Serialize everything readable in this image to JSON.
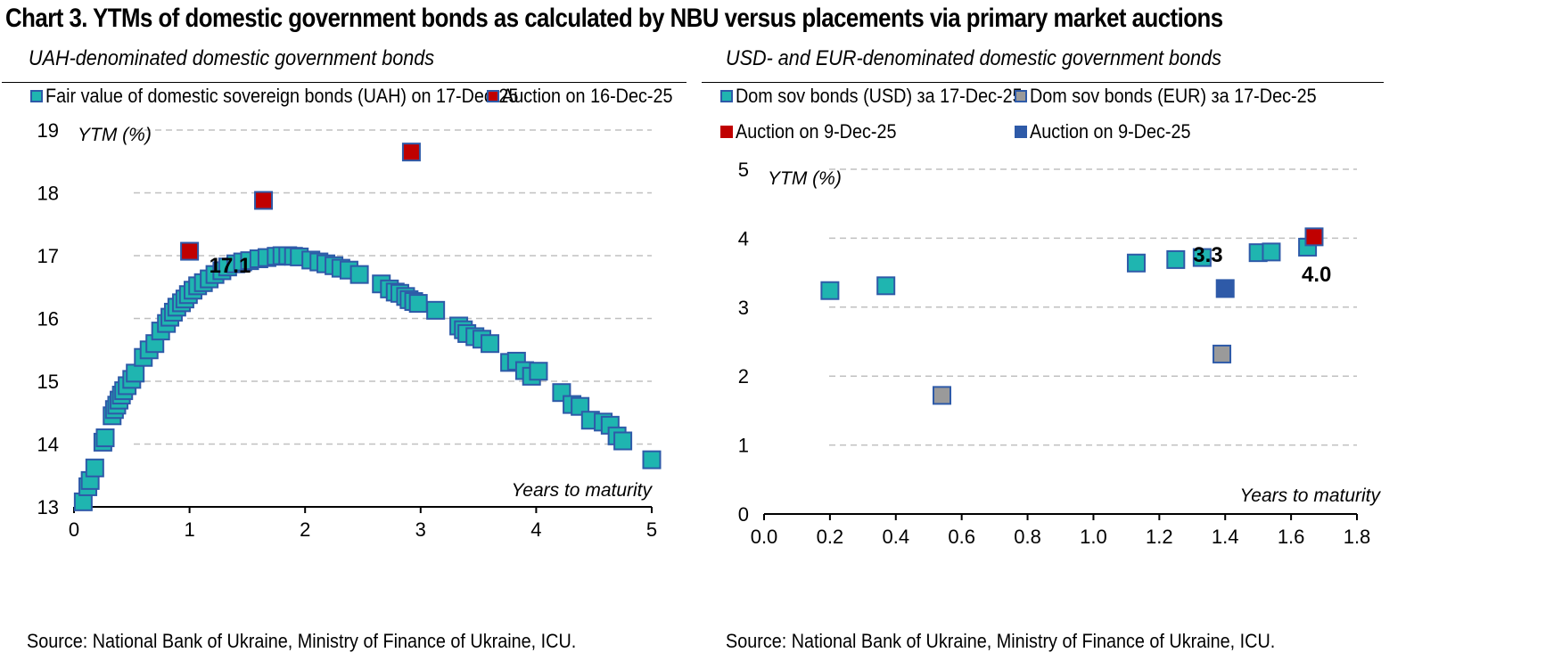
{
  "title": "Chart 3. YTMs of domestic government bonds as calculated by NBU versus placements via primary market auctions",
  "colors": {
    "teal": "#1fb5b0",
    "teal_edge": "#2e5aa8",
    "red": "#c00000",
    "blue": "#2e5aa8",
    "gray": "#9a9a9a",
    "grid": "#c0c0c0"
  },
  "chart_data": [
    {
      "type": "scatter",
      "title": "UAH-denominated domestic government bonds",
      "ylabel": "YTM (%)",
      "xlabel": "Years to maturity",
      "xlim": [
        0,
        5
      ],
      "ylim": [
        13,
        19
      ],
      "x_ticks": [
        "0",
        "1",
        "2",
        "3",
        "4",
        "5"
      ],
      "y_ticks": [
        "13",
        "14",
        "15",
        "16",
        "17",
        "18",
        "19"
      ],
      "grid": "horizontal dashed",
      "source": "Source: National Bank of Ukraine, Ministry of Finance of Ukraine, ICU.",
      "series": [
        {
          "name": "Fair value of domestic sovereign bonds (UAH) on 17-Dec-25",
          "color": "teal",
          "points": [
            [
              0.08,
              13.08
            ],
            [
              0.12,
              13.32
            ],
            [
              0.14,
              13.42
            ],
            [
              0.18,
              13.62
            ],
            [
              0.25,
              14.03
            ],
            [
              0.27,
              14.1
            ],
            [
              0.33,
              14.45
            ],
            [
              0.35,
              14.55
            ],
            [
              0.37,
              14.62
            ],
            [
              0.39,
              14.7
            ],
            [
              0.41,
              14.78
            ],
            [
              0.43,
              14.85
            ],
            [
              0.46,
              14.93
            ],
            [
              0.5,
              15.03
            ],
            [
              0.53,
              15.13
            ],
            [
              0.6,
              15.38
            ],
            [
              0.65,
              15.5
            ],
            [
              0.7,
              15.6
            ],
            [
              0.75,
              15.8
            ],
            [
              0.8,
              15.92
            ],
            [
              0.83,
              16.02
            ],
            [
              0.86,
              16.1
            ],
            [
              0.89,
              16.18
            ],
            [
              0.93,
              16.25
            ],
            [
              0.96,
              16.31
            ],
            [
              0.99,
              16.38
            ],
            [
              1.03,
              16.45
            ],
            [
              1.07,
              16.52
            ],
            [
              1.12,
              16.57
            ],
            [
              1.17,
              16.63
            ],
            [
              1.22,
              16.7
            ],
            [
              1.28,
              16.76
            ],
            [
              1.33,
              16.82
            ],
            [
              1.4,
              16.87
            ],
            [
              1.46,
              16.9
            ],
            [
              1.52,
              16.92
            ],
            [
              1.6,
              16.95
            ],
            [
              1.67,
              16.97
            ],
            [
              1.75,
              16.99
            ],
            [
              1.8,
              17.0
            ],
            [
              1.85,
              17.0
            ],
            [
              1.9,
              16.99
            ],
            [
              1.95,
              16.98
            ],
            [
              2.05,
              16.93
            ],
            [
              2.12,
              16.9
            ],
            [
              2.18,
              16.87
            ],
            [
              2.25,
              16.84
            ],
            [
              2.31,
              16.8
            ],
            [
              2.38,
              16.77
            ],
            [
              2.47,
              16.7
            ],
            [
              2.66,
              16.55
            ],
            [
              2.73,
              16.47
            ],
            [
              2.78,
              16.42
            ],
            [
              2.82,
              16.4
            ],
            [
              2.87,
              16.35
            ],
            [
              2.9,
              16.3
            ],
            [
              2.94,
              16.27
            ],
            [
              2.98,
              16.24
            ],
            [
              3.13,
              16.13
            ],
            [
              3.33,
              15.88
            ],
            [
              3.37,
              15.82
            ],
            [
              3.4,
              15.76
            ],
            [
              3.47,
              15.71
            ],
            [
              3.53,
              15.67
            ],
            [
              3.6,
              15.6
            ],
            [
              3.77,
              15.3
            ],
            [
              3.83,
              15.32
            ],
            [
              3.9,
              15.17
            ],
            [
              3.96,
              15.08
            ],
            [
              4.02,
              15.16
            ],
            [
              4.22,
              14.82
            ],
            [
              4.31,
              14.63
            ],
            [
              4.38,
              14.6
            ],
            [
              4.47,
              14.38
            ],
            [
              4.58,
              14.35
            ],
            [
              4.64,
              14.3
            ],
            [
              4.7,
              14.13
            ],
            [
              4.75,
              14.05
            ],
            [
              5.0,
              13.75
            ]
          ]
        },
        {
          "name": "Auction on 16-Dec-25",
          "color": "red",
          "points": [
            [
              1.0,
              17.07
            ],
            [
              1.64,
              17.88
            ],
            [
              2.92,
              18.65
            ]
          ]
        }
      ],
      "annotations": [
        {
          "text": "17.1",
          "x": 1.0,
          "y": 17.07
        }
      ]
    },
    {
      "type": "scatter",
      "title": "USD- and EUR-denominated domestic government bonds",
      "ylabel": "YTM (%)",
      "xlabel": "Years to maturity",
      "xlim": [
        0,
        1.8
      ],
      "ylim": [
        0,
        5
      ],
      "x_ticks": [
        "0.0",
        "0.2",
        "0.4",
        "0.6",
        "0.8",
        "1.0",
        "1.2",
        "1.4",
        "1.6",
        "1.8"
      ],
      "y_ticks": [
        "0",
        "1",
        "2",
        "3",
        "4",
        "5"
      ],
      "grid": "horizontal dashed",
      "source": "Source: National Bank of Ukraine, Ministry of Finance of Ukraine, ICU.",
      "series": [
        {
          "name": "Dom sov bonds (USD) за 17-Dec-25",
          "color": "teal",
          "points": [
            [
              0.2,
              3.24
            ],
            [
              0.37,
              3.31
            ],
            [
              1.13,
              3.64
            ],
            [
              1.25,
              3.69
            ],
            [
              1.33,
              3.72
            ],
            [
              1.5,
              3.79
            ],
            [
              1.54,
              3.8
            ],
            [
              1.65,
              3.87
            ]
          ]
        },
        {
          "name": "Dom sov bonds (EUR) за 17-Dec-25",
          "color": "gray",
          "points": [
            [
              0.54,
              1.72
            ],
            [
              1.39,
              2.32
            ]
          ]
        },
        {
          "name": "Auction on 9-Dec-25",
          "color": "red",
          "points": [
            [
              1.67,
              4.02
            ]
          ]
        },
        {
          "name": "Auction on 9-Dec-25",
          "color": "blue",
          "points": [
            [
              1.4,
              3.27
            ]
          ]
        }
      ],
      "annotations": [
        {
          "text": "3.3",
          "x": 1.4,
          "y": 3.27
        },
        {
          "text": "4.0",
          "x": 1.67,
          "y": 4.02
        }
      ]
    }
  ]
}
